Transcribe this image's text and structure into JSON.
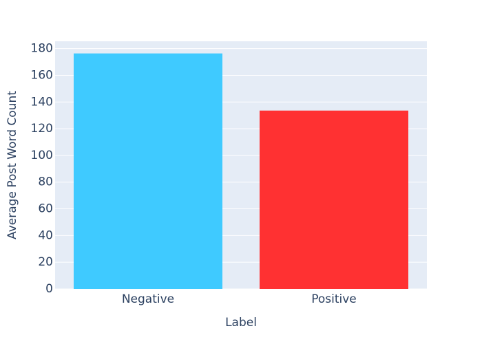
{
  "chart_data": {
    "type": "bar",
    "x_label": "Label",
    "y_label": "Average Post Word Count",
    "categories": [
      "Negative",
      "Positive"
    ],
    "values": [
      176.4,
      133.6
    ],
    "colors": [
      "#3fcaff",
      "#ff3132"
    ],
    "ylim": [
      0,
      185.5
    ],
    "yticks": [
      0,
      20,
      40,
      60,
      80,
      100,
      120,
      140,
      160,
      180
    ],
    "grid": true
  }
}
